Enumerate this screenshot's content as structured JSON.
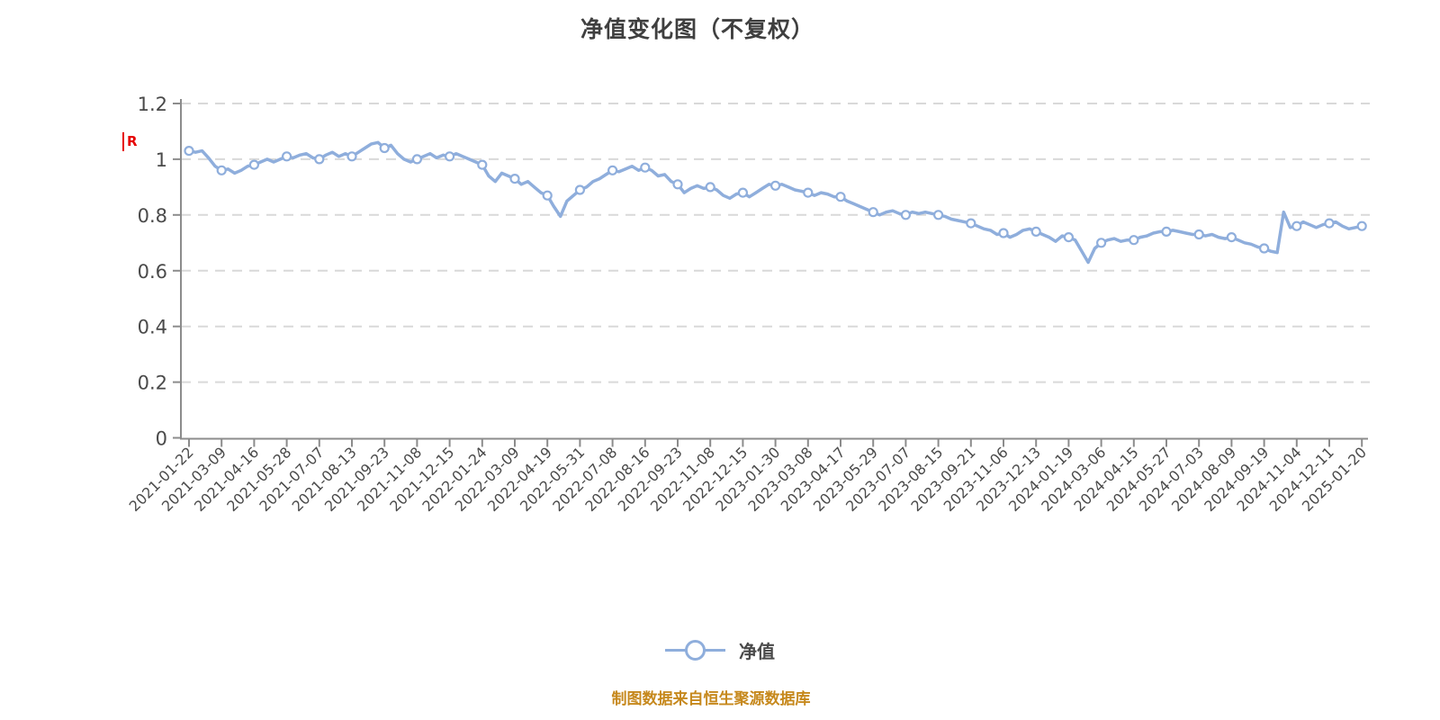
{
  "title": "净值变化图（不复权）",
  "flag": {
    "label": "R"
  },
  "legend": {
    "label": "净值"
  },
  "footer": "制图数据来自恒生聚源数据库",
  "colors": {
    "line": "#8FAEDC",
    "marker_fill": "#ffffff",
    "title": "#3f3f3f",
    "axis": "#8c8c8c",
    "tick_label": "#4a4a4a",
    "grid": "#d9d9d9",
    "flag": "#e60000",
    "footer": "#c6881c",
    "background": "#ffffff"
  },
  "chart_data": {
    "type": "line",
    "title": "净值变化图（不复权）",
    "xlabel": "",
    "ylabel": "",
    "ylim": [
      0,
      1.2
    ],
    "y_ticks": [
      0,
      0.2,
      0.4,
      0.6,
      0.8,
      1,
      1.2
    ],
    "grid": "horizontal-dashed",
    "legend_position": "bottom-center",
    "x_tick_labels": [
      "2021-01-22",
      "2021-03-09",
      "2021-04-16",
      "2021-05-28",
      "2021-07-07",
      "2021-08-13",
      "2021-09-23",
      "2021-11-08",
      "2021-12-15",
      "2022-01-24",
      "2022-03-09",
      "2022-04-19",
      "2022-05-31",
      "2022-07-08",
      "2022-08-16",
      "2022-09-23",
      "2022-11-08",
      "2022-12-15",
      "2023-01-30",
      "2023-03-08",
      "2023-04-17",
      "2023-05-29",
      "2023-07-07",
      "2023-08-15",
      "2023-09-21",
      "2023-11-06",
      "2023-12-13",
      "2024-01-19",
      "2024-03-06",
      "2024-04-15",
      "2024-05-27",
      "2024-07-03",
      "2024-08-09",
      "2024-09-19",
      "2024-11-04",
      "2024-12-11",
      "2025-01-20"
    ],
    "markers_every": 5,
    "series": [
      {
        "name": "净值",
        "values_at_ticks": [
          1.03,
          0.96,
          0.98,
          1.01,
          1.0,
          1.01,
          1.04,
          1.0,
          1.01,
          0.98,
          0.93,
          0.87,
          0.89,
          0.96,
          0.97,
          0.91,
          0.9,
          0.88,
          0.905,
          0.88,
          0.865,
          0.81,
          0.8,
          0.8,
          0.77,
          0.735,
          0.74,
          0.72,
          0.7,
          0.71,
          0.74,
          0.73,
          0.72,
          0.68,
          0.76,
          0.77,
          0.76
        ],
        "dense_values": [
          1.03,
          1.025,
          1.03,
          1.005,
          0.975,
          0.96,
          0.965,
          0.95,
          0.96,
          0.975,
          0.98,
          0.99,
          1.0,
          0.99,
          1.0,
          1.01,
          1.005,
          1.015,
          1.02,
          1.005,
          1.0,
          1.015,
          1.025,
          1.01,
          1.02,
          1.01,
          1.025,
          1.04,
          1.055,
          1.06,
          1.04,
          1.05,
          1.02,
          1.0,
          0.99,
          1.0,
          1.01,
          1.02,
          1.005,
          1.015,
          1.01,
          1.02,
          1.01,
          1.0,
          0.99,
          0.98,
          0.94,
          0.92,
          0.95,
          0.94,
          0.93,
          0.91,
          0.92,
          0.9,
          0.88,
          0.87,
          0.83,
          0.795,
          0.85,
          0.87,
          0.89,
          0.9,
          0.92,
          0.93,
          0.945,
          0.96,
          0.955,
          0.965,
          0.975,
          0.96,
          0.97,
          0.96,
          0.94,
          0.945,
          0.92,
          0.91,
          0.88,
          0.895,
          0.905,
          0.895,
          0.9,
          0.89,
          0.87,
          0.86,
          0.875,
          0.88,
          0.865,
          0.88,
          0.895,
          0.91,
          0.905,
          0.91,
          0.9,
          0.89,
          0.885,
          0.88,
          0.87,
          0.88,
          0.875,
          0.865,
          0.865,
          0.85,
          0.84,
          0.83,
          0.82,
          0.81,
          0.8,
          0.81,
          0.815,
          0.805,
          0.8,
          0.81,
          0.805,
          0.81,
          0.805,
          0.8,
          0.795,
          0.785,
          0.78,
          0.775,
          0.77,
          0.76,
          0.75,
          0.745,
          0.73,
          0.735,
          0.72,
          0.73,
          0.745,
          0.75,
          0.74,
          0.73,
          0.72,
          0.705,
          0.725,
          0.72,
          0.71,
          0.67,
          0.63,
          0.68,
          0.7,
          0.71,
          0.715,
          0.705,
          0.71,
          0.71,
          0.72,
          0.725,
          0.735,
          0.74,
          0.74,
          0.745,
          0.74,
          0.735,
          0.73,
          0.73,
          0.725,
          0.73,
          0.72,
          0.715,
          0.72,
          0.71,
          0.7,
          0.695,
          0.685,
          0.68,
          0.67,
          0.665,
          0.81,
          0.755,
          0.76,
          0.775,
          0.765,
          0.755,
          0.765,
          0.77,
          0.775,
          0.76,
          0.75,
          0.755,
          0.76
        ]
      }
    ]
  }
}
